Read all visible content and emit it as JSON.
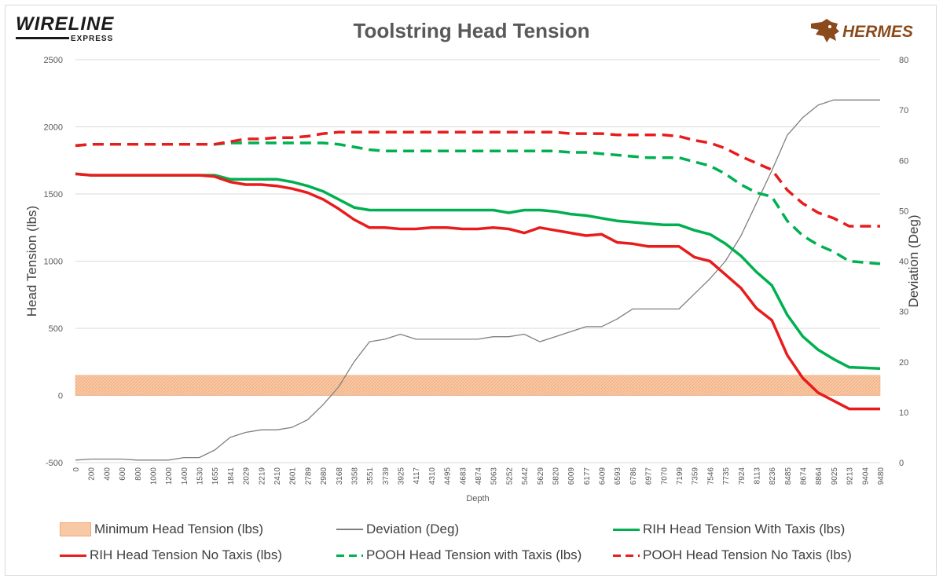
{
  "header": {
    "title": "Toolstring Head Tension",
    "left_logo": "WIRELINE",
    "left_logo_sub": "EXPRESS",
    "right_logo": "HERMES",
    "right_logo_icon": "hermes-horse-icon"
  },
  "colors": {
    "green": "#00b050",
    "red": "#e81c1c",
    "grey": "#7f7f7f",
    "band": "#f8c9a6",
    "band_hatch": "#f0a878"
  },
  "chart_data": {
    "type": "line",
    "title": "Toolstring Head Tension",
    "xlabel": "Depth",
    "ylabel": "Head Tension (lbs)",
    "y2label": "Deviation (Deg)",
    "ylim": [
      -500,
      2500
    ],
    "y2lim": [
      0,
      80
    ],
    "yticks": [
      "2500",
      "2000",
      "1500",
      "1000",
      "500",
      "0",
      "-500"
    ],
    "y2ticks": [
      "80",
      "70",
      "60",
      "50",
      "40",
      "30",
      "20",
      "10",
      "0"
    ],
    "grid": "horizontal",
    "legend_position": "bottom",
    "x": [
      "0",
      "200",
      "400",
      "600",
      "800",
      "1000",
      "1200",
      "1400",
      "1530",
      "1655",
      "1841",
      "2029",
      "2219",
      "2410",
      "2601",
      "2789",
      "2980",
      "3168",
      "3358",
      "3551",
      "3739",
      "3925",
      "4117",
      "4310",
      "4495",
      "4683",
      "4874",
      "5063",
      "5252",
      "5442",
      "5629",
      "5820",
      "6009",
      "6177",
      "6409",
      "6593",
      "6786",
      "6977",
      "7070",
      "7199",
      "7359",
      "7546",
      "7735",
      "7924",
      "8113",
      "8236",
      "8485",
      "8674",
      "8864",
      "9025",
      "9213",
      "9404",
      "9480"
    ],
    "series": [
      {
        "name": "Minimum Head Tension (lbs)",
        "kind": "band",
        "from": 0,
        "to": 150
      },
      {
        "name": "Deviation (Deg)",
        "axis": "right",
        "style": "thin-grey",
        "values": [
          0.5,
          0.7,
          0.7,
          0.7,
          0.5,
          0.5,
          0.5,
          1.0,
          1.0,
          2.5,
          5.0,
          6.0,
          6.5,
          6.5,
          7.0,
          8.5,
          11.5,
          15.0,
          20.0,
          24.0,
          24.5,
          25.5,
          24.5,
          24.5,
          24.5,
          24.5,
          24.5,
          25.0,
          25.0,
          25.5,
          24.0,
          25.0,
          26.0,
          27.0,
          27.0,
          28.5,
          30.5,
          30.5,
          30.5,
          30.5,
          33.5,
          36.5,
          40.0,
          45.0,
          51.5,
          58.0,
          65.0,
          68.5,
          71.0,
          72.0,
          72.0,
          72.0,
          72.0
        ]
      },
      {
        "name": "RIH Head Tension With Taxis (lbs)",
        "style": "solid-green",
        "values": [
          1650,
          1640,
          1640,
          1640,
          1640,
          1640,
          1640,
          1640,
          1640,
          1640,
          1610,
          1610,
          1610,
          1610,
          1590,
          1560,
          1520,
          1460,
          1400,
          1380,
          1380,
          1380,
          1380,
          1380,
          1380,
          1380,
          1380,
          1380,
          1360,
          1380,
          1380,
          1370,
          1350,
          1340,
          1320,
          1300,
          1290,
          1280,
          1270,
          1270,
          1230,
          1200,
          1130,
          1040,
          920,
          820,
          600,
          440,
          340,
          270,
          210,
          205,
          200
        ]
      },
      {
        "name": "RIH Head Tension No Taxis (lbs)",
        "style": "solid-red",
        "values": [
          1650,
          1640,
          1640,
          1640,
          1640,
          1640,
          1640,
          1640,
          1640,
          1630,
          1590,
          1570,
          1570,
          1560,
          1540,
          1510,
          1460,
          1390,
          1310,
          1250,
          1250,
          1240,
          1240,
          1250,
          1250,
          1240,
          1240,
          1250,
          1240,
          1210,
          1250,
          1230,
          1210,
          1190,
          1200,
          1140,
          1130,
          1110,
          1110,
          1110,
          1030,
          1000,
          900,
          800,
          650,
          560,
          300,
          130,
          20,
          -40,
          -100,
          -100,
          -100
        ]
      },
      {
        "name": "POOH Head Tension with Taxis (lbs)",
        "style": "dashed-green",
        "values": [
          1860,
          1870,
          1870,
          1870,
          1870,
          1870,
          1870,
          1870,
          1870,
          1870,
          1880,
          1880,
          1880,
          1880,
          1880,
          1880,
          1880,
          1870,
          1850,
          1830,
          1820,
          1820,
          1820,
          1820,
          1820,
          1820,
          1820,
          1820,
          1820,
          1820,
          1820,
          1820,
          1810,
          1810,
          1800,
          1790,
          1780,
          1770,
          1770,
          1770,
          1740,
          1710,
          1650,
          1570,
          1510,
          1480,
          1300,
          1190,
          1120,
          1070,
          1000,
          990,
          980
        ]
      },
      {
        "name": "POOH Head Tension No Taxis (lbs)",
        "style": "dashed-red",
        "values": [
          1860,
          1870,
          1870,
          1870,
          1870,
          1870,
          1870,
          1870,
          1870,
          1870,
          1890,
          1910,
          1910,
          1920,
          1920,
          1930,
          1950,
          1960,
          1960,
          1960,
          1960,
          1960,
          1960,
          1960,
          1960,
          1960,
          1960,
          1960,
          1960,
          1960,
          1960,
          1960,
          1950,
          1950,
          1950,
          1940,
          1940,
          1940,
          1940,
          1930,
          1900,
          1880,
          1840,
          1780,
          1730,
          1680,
          1530,
          1430,
          1360,
          1320,
          1260,
          1260,
          1260
        ]
      }
    ]
  }
}
